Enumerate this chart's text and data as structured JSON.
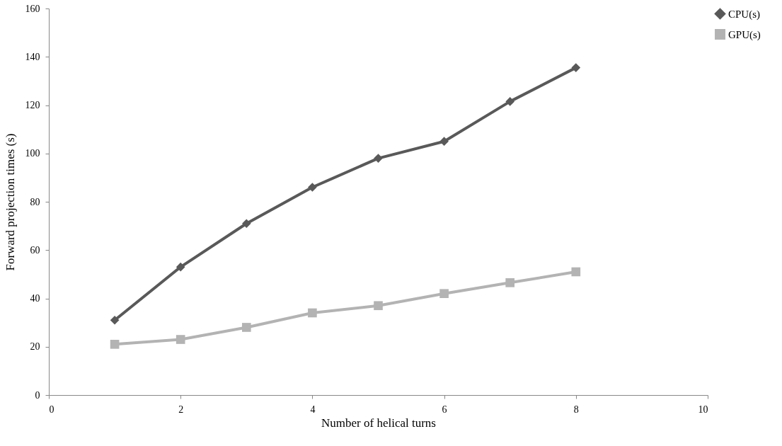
{
  "chart_data": {
    "type": "line",
    "xlabel": "Number of helical turns",
    "ylabel": "Forward projection times (s)",
    "xlim": [
      0,
      10
    ],
    "xticks": [
      0,
      2,
      4,
      6,
      8,
      10
    ],
    "ylim": [
      0,
      160
    ],
    "yticks": [
      0,
      20,
      40,
      60,
      80,
      100,
      120,
      140,
      160
    ],
    "grid": false,
    "legend": "right",
    "line_style": "solid",
    "series": [
      {
        "name": "CPU(s)",
        "color": "#595959",
        "marker": "diamond",
        "x": [
          1,
          2,
          3,
          4,
          5,
          6,
          7,
          8
        ],
        "values": [
          31,
          53,
          71,
          86,
          98,
          105,
          121.5,
          135.5
        ]
      },
      {
        "name": "GPU(s)",
        "color": "#b3b3b3",
        "marker": "square",
        "x": [
          1,
          2,
          3,
          4,
          5,
          6,
          7,
          8
        ],
        "values": [
          21,
          23,
          28,
          34,
          37,
          42,
          46.5,
          51
        ]
      }
    ]
  }
}
